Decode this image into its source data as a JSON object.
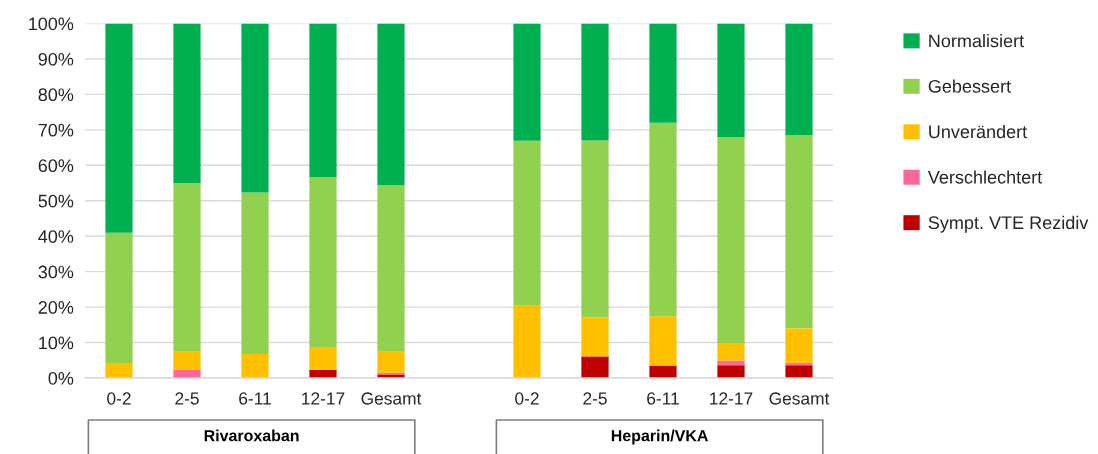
{
  "chart_data": {
    "type": "bar",
    "stacked": true,
    "categories": [
      "0-2",
      "2-5",
      "6-11",
      "12-17",
      "Gesamt",
      null,
      "0-2",
      "2-5",
      "6-11",
      "12-17",
      "Gesamt"
    ],
    "series": [
      {
        "name": "Sympt. VTE Rezidiv",
        "color": "#c00000",
        "values": [
          0,
          0,
          0,
          2.3,
          1.0,
          null,
          0,
          6.1,
          3.5,
          3.6,
          3.6
        ]
      },
      {
        "name": "Verschlechtert",
        "color": "#ff6699",
        "values": [
          0,
          2.3,
          0,
          0,
          0.5,
          null,
          0,
          0,
          0,
          1.3,
          0.7
        ]
      },
      {
        "name": "Unverändert",
        "color": "#ffc000",
        "values": [
          4.0,
          5.1,
          6.8,
          6.2,
          6.1,
          null,
          20.4,
          11.0,
          13.9,
          5.0,
          9.7
        ]
      },
      {
        "name": "Gebessert",
        "color": "#92d050",
        "values": [
          37.0,
          47.6,
          45.5,
          48.1,
          46.8,
          null,
          46.5,
          49.9,
          54.6,
          58.0,
          54.5
        ]
      },
      {
        "name": "Normalisiert",
        "color": "#00b050",
        "values": [
          59.0,
          45.0,
          47.7,
          43.4,
          45.6,
          null,
          33.1,
          33.0,
          28.0,
          32.1,
          31.5
        ]
      }
    ],
    "ylim": [
      0,
      100
    ],
    "yticks": [
      {
        "value": 0,
        "label": "0%"
      },
      {
        "value": 10,
        "label": "10%"
      },
      {
        "value": 20,
        "label": "20%"
      },
      {
        "value": 30,
        "label": "30%"
      },
      {
        "value": 40,
        "label": "40%"
      },
      {
        "value": 50,
        "label": "50%"
      },
      {
        "value": 60,
        "label": "60%"
      },
      {
        "value": 70,
        "label": "70%"
      },
      {
        "value": 80,
        "label": "80%"
      },
      {
        "value": 90,
        "label": "90%"
      },
      {
        "value": 100,
        "label": "100%"
      }
    ],
    "grid": "y",
    "legend": "right",
    "annotations": [
      "Rivaroxaban",
      "Heparin/VKA"
    ]
  }
}
